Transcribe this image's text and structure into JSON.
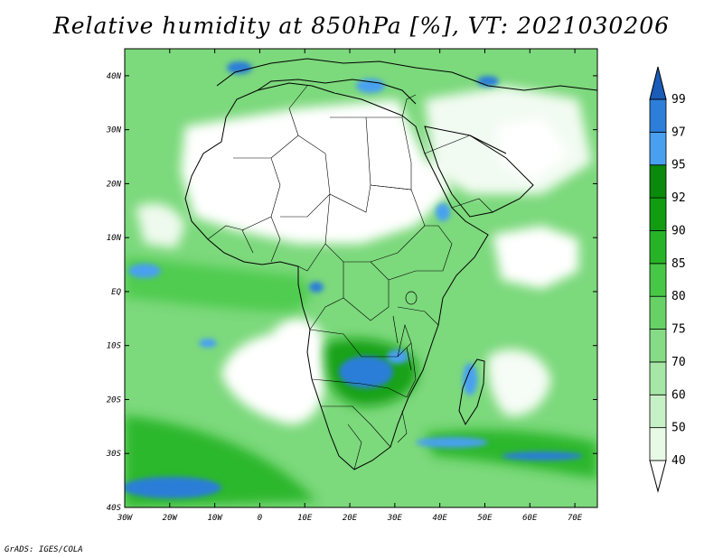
{
  "title": "Relative humidity at 850hPa [%], VT: 2021030206",
  "credit": "GrADS: IGES/COLA",
  "map": {
    "lon_range": [
      -30,
      75
    ],
    "lat_range": [
      -40,
      45
    ],
    "lon_ticks": [
      {
        "value": -30,
        "label": "30W"
      },
      {
        "value": -20,
        "label": "20W"
      },
      {
        "value": -10,
        "label": "10W"
      },
      {
        "value": 0,
        "label": "0"
      },
      {
        "value": 10,
        "label": "10E"
      },
      {
        "value": 20,
        "label": "20E"
      },
      {
        "value": 30,
        "label": "30E"
      },
      {
        "value": 40,
        "label": "40E"
      },
      {
        "value": 50,
        "label": "50E"
      },
      {
        "value": 60,
        "label": "60E"
      },
      {
        "value": 70,
        "label": "70E"
      }
    ],
    "lat_ticks": [
      {
        "value": 40,
        "label": "40N"
      },
      {
        "value": 30,
        "label": "30N"
      },
      {
        "value": 20,
        "label": "20N"
      },
      {
        "value": 10,
        "label": "10N"
      },
      {
        "value": 0,
        "label": "EQ"
      },
      {
        "value": -10,
        "label": "10S"
      },
      {
        "value": -20,
        "label": "20S"
      },
      {
        "value": -30,
        "label": "30S"
      },
      {
        "value": -40,
        "label": "40S"
      }
    ]
  },
  "colorbar": {
    "levels": [
      "40",
      "50",
      "60",
      "70",
      "75",
      "80",
      "85",
      "90",
      "92",
      "95",
      "97",
      "99"
    ],
    "colors": [
      "#ffffff",
      "#e6fae6",
      "#c6f0c6",
      "#a6e6a6",
      "#86dc86",
      "#66d266",
      "#46c846",
      "#26b426",
      "#129c12",
      "#0a8a0a",
      "#4aa0f0",
      "#2c7ed8",
      "#1a5cb8"
    ]
  },
  "colors": {
    "land_outline": "#000000",
    "dry": "#ffffff"
  }
}
